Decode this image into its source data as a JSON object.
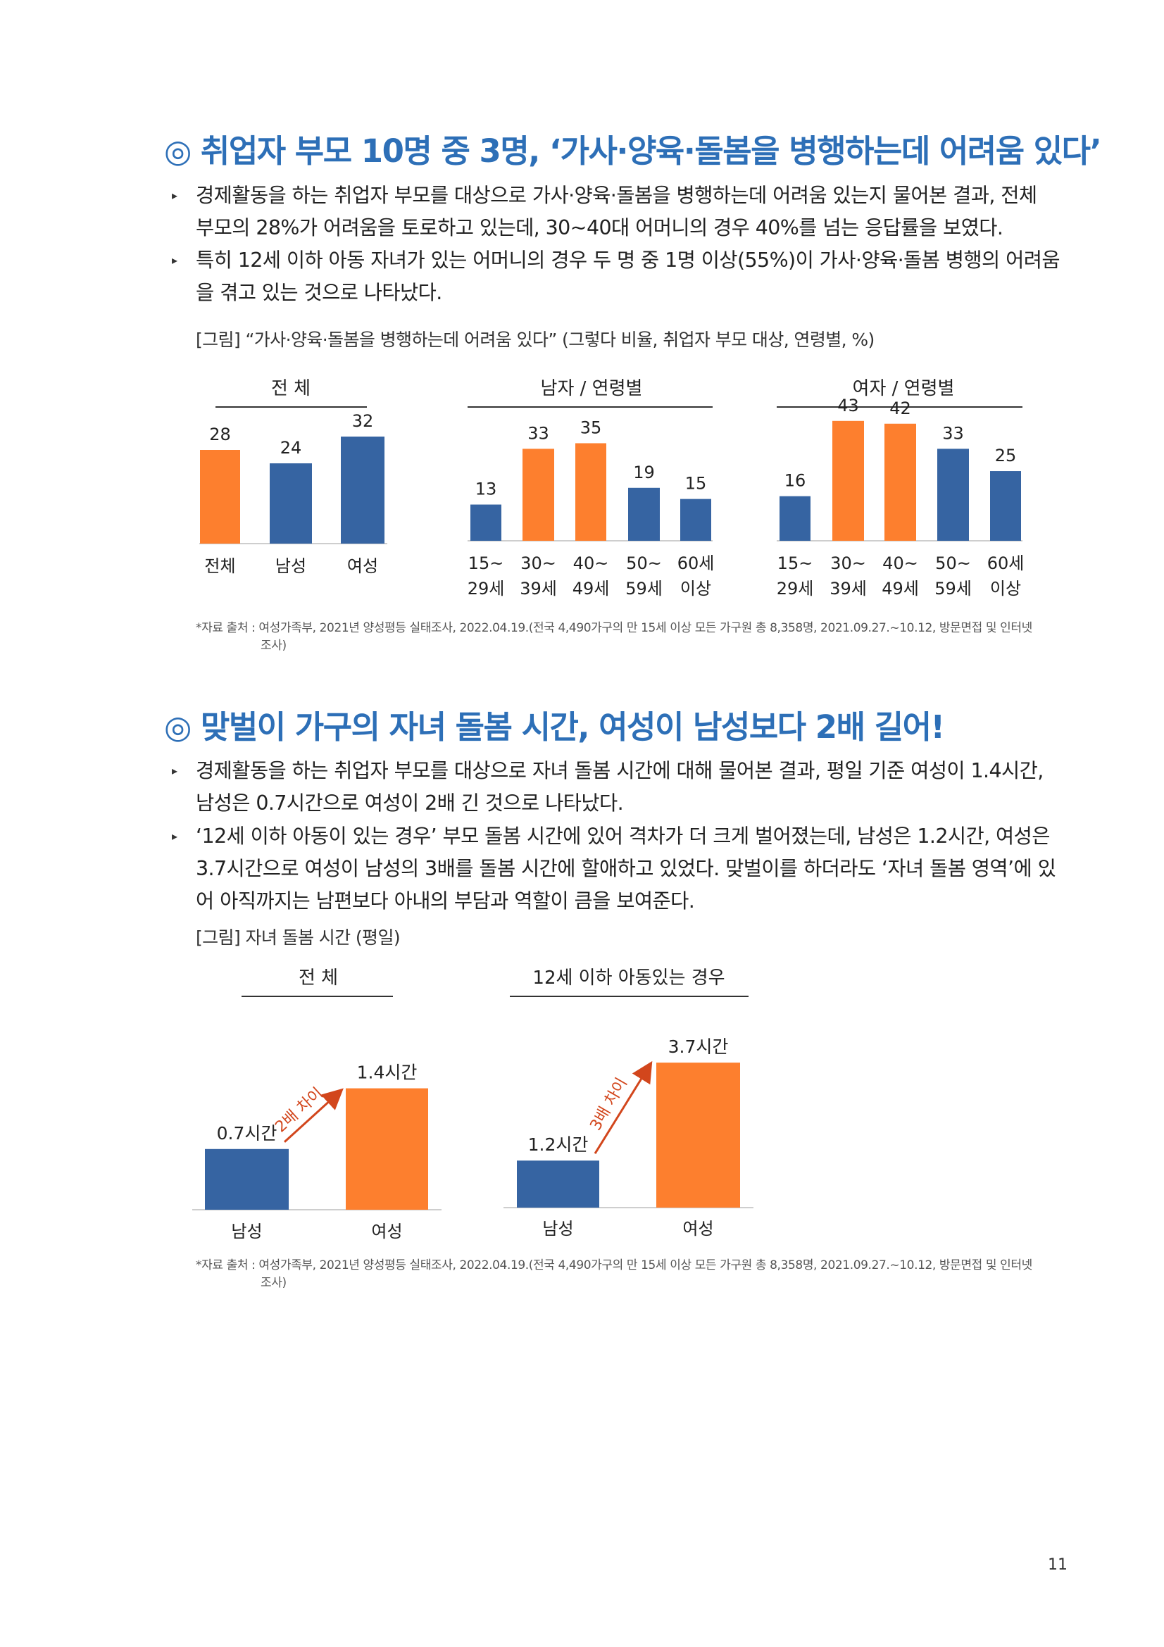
{
  "section1": {
    "title": "◎ 취업자 부모 10명 중 3명, ‘가사·양육·돌봄을 병행하는데 어려움 있다’",
    "bullet1_line1": "경제활동을 하는 취업자 부모를 대상으로 가사·양육·돌봄을 병행하는데 어려움 있는지 물어본 결과, 전체",
    "bullet1_line2": "부모의 28%가 어려움을 토로하고 있는데, 30~40대 어머니의 경우 40%를 넘는 응답률을 보였다.",
    "bullet2_line1": "특히 12세 이하 아동 자녀가 있는 어머니의 경우 두 명 중 1명 이상(55%)이 가사·양육·돌봄 병행의 어려움",
    "bullet2_line2": "을 겪고 있는 것으로 나타났다.",
    "figure_caption": "[그림] “가사·양육·돌봄을 병행하는데 어려움 있다” (그렇다 비율, 취업자 부모 대상, 연령별, %)",
    "source_line1": "*자료 출처 : 여성가족부, 2021년 양성평등 실태조사, 2022.04.19.(전국 4,490가구의 만 15세 이상 모든 가구원 총 8,358명, 2021.09.27.~10.12, 방문면접 및 인터넷",
    "source_line2": "조사)"
  },
  "section2": {
    "title": "◎ 맞벌이 가구의 자녀 돌봄 시간, 여성이 남성보다 2배 길어!",
    "bullet1_line1": "경제활동을 하는 취업자 부모를 대상으로 자녀 돌봄 시간에 대해 물어본 결과, 평일 기준 여성이 1.4시간,",
    "bullet1_line2": "남성은 0.7시간으로 여성이 2배 긴 것으로 나타났다.",
    "bullet2_line1": "‘12세 이하 아동이 있는 경우’ 부모 돌봄 시간에 있어 격차가 더 크게 벌어졌는데, 남성은 1.2시간, 여성은",
    "bullet2_line2": "3.7시간으로 여성이 남성의 3배를 돌봄 시간에 할애하고 있었다. 맞벌이를 하더라도 ‘자녀 돌봄 영역’에 있",
    "bullet2_line3": "어 아직까지는 남편보다 아내의 부담과 역할이 큼을 보여준다.",
    "figure_caption": "[그림] 자녀 돌봄 시간 (평일)",
    "source_line1": "*자료 출처 : 여성가족부, 2021년 양성평등 실태조사, 2022.04.19.(전국 4,490가구의 만 15세 이상 모든 가구원 총 8,358명, 2021.09.27.~10.12, 방문면접 및 인터넷",
    "source_line2": "조사)"
  },
  "bullet_marker": "▸",
  "page_number": "11",
  "colors": {
    "orange": "#fd7f2e",
    "blue": "#3664a2",
    "heading": "#2d6fb7",
    "arrow": "#d2461c"
  },
  "chart_data": [
    {
      "type": "bar",
      "title": "전    체",
      "categories": [
        "전체",
        "남성",
        "여성"
      ],
      "values": [
        28,
        24,
        32
      ],
      "bar_colors": [
        "orange",
        "blue",
        "blue"
      ],
      "ylim": [
        0,
        40
      ]
    },
    {
      "type": "bar",
      "title": "남자 / 연령별",
      "categories": [
        "15~\n29세",
        "30~\n39세",
        "40~\n49세",
        "50~\n59세",
        "60세\n이상"
      ],
      "values": [
        13,
        33,
        35,
        19,
        15
      ],
      "bar_colors": [
        "blue",
        "orange",
        "orange",
        "blue",
        "blue"
      ],
      "ylim": [
        0,
        48
      ]
    },
    {
      "type": "bar",
      "title": "여자 / 연령별",
      "categories": [
        "15~\n29세",
        "30~\n39세",
        "40~\n49세",
        "50~\n59세",
        "60세\n이상"
      ],
      "values": [
        16,
        43,
        42,
        33,
        25
      ],
      "bar_colors": [
        "blue",
        "orange",
        "orange",
        "blue",
        "blue"
      ],
      "ylim": [
        0,
        48
      ]
    },
    {
      "type": "bar",
      "title": "전    체",
      "categories": [
        "남성",
        "여성"
      ],
      "values": [
        0.7,
        1.4
      ],
      "value_labels": [
        "0.7시간",
        "1.4시간"
      ],
      "bar_colors": [
        "blue",
        "orange"
      ],
      "annotation": "2배 차이",
      "ylim": [
        0,
        1.9
      ]
    },
    {
      "type": "bar",
      "title": "12세 이하 아동있는 경우",
      "categories": [
        "남성",
        "여성"
      ],
      "values": [
        1.2,
        3.7
      ],
      "value_labels": [
        "1.2시간",
        "3.7시간"
      ],
      "bar_colors": [
        "blue",
        "orange"
      ],
      "annotation": "3배 차이",
      "ylim": [
        0,
        4.6
      ]
    }
  ]
}
